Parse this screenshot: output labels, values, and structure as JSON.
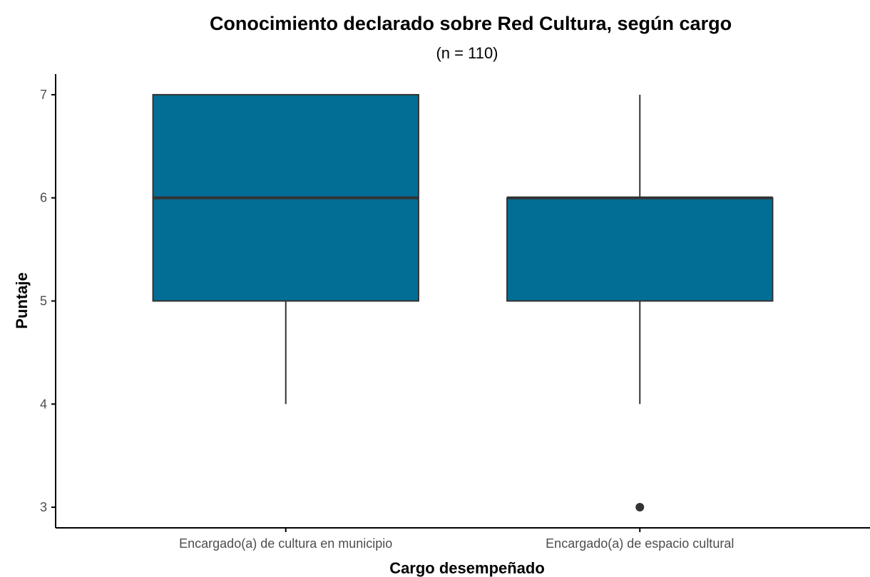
{
  "chart_data": {
    "type": "boxplot",
    "title": "Conocimiento declarado sobre Red Cultura, según cargo",
    "subtitle": "(n = 110)",
    "xlabel": "Cargo desempeñado",
    "ylabel": "Puntaje",
    "categories": [
      "Encargado(a) de cultura en municipio",
      "Encargado(a) de espacio cultural"
    ],
    "boxes": [
      {
        "category": "Encargado(a) de cultura en municipio",
        "whisker_low": 4,
        "q1": 5,
        "median": 6,
        "q3": 7,
        "whisker_high": 7,
        "outliers": []
      },
      {
        "category": "Encargado(a) de espacio cultural",
        "whisker_low": 4,
        "q1": 5,
        "median": 6,
        "q3": 6,
        "whisker_high": 7,
        "outliers": [
          3
        ]
      }
    ],
    "y_ticks": [
      3,
      4,
      5,
      6,
      7
    ],
    "ylim": [
      2.8,
      7.2
    ],
    "grid": false,
    "legend": "none",
    "colors": {
      "box_fill": "#026e96",
      "box_line": "#333333",
      "axis": "#000000",
      "tick_label": "#4d4d4d"
    }
  }
}
